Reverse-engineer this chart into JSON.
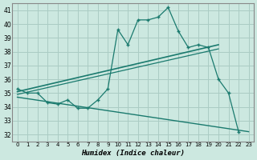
{
  "x": [
    0,
    1,
    2,
    3,
    4,
    5,
    6,
    7,
    8,
    9,
    10,
    11,
    12,
    13,
    14,
    15,
    16,
    17,
    18,
    19,
    20,
    21,
    22,
    23
  ],
  "humidex": [
    35.3,
    35.0,
    35.0,
    34.3,
    34.2,
    34.5,
    33.9,
    33.9,
    34.5,
    35.3,
    39.6,
    38.5,
    40.3,
    40.3,
    40.5,
    41.2,
    39.5,
    38.3,
    38.5,
    38.3,
    36.0,
    35.0,
    32.2,
    null
  ],
  "line_upper": {
    "x0": 0,
    "x1": 20,
    "y0": 35.1,
    "y1": 38.5
  },
  "line_middle": {
    "x0": 0,
    "x1": 20,
    "y0": 34.9,
    "y1": 38.2
  },
  "line_lower": {
    "x0": 0,
    "x1": 23,
    "y0": 34.7,
    "y1": 32.2
  },
  "bg_color": "#cce8e0",
  "grid_color": "#aaccC4",
  "line_color": "#1a7a6e",
  "ylabel_ticks": [
    32,
    33,
    34,
    35,
    36,
    37,
    38,
    39,
    40,
    41
  ],
  "xlabel": "Humidex (Indice chaleur)",
  "xlim": [
    -0.5,
    23.5
  ],
  "ylim": [
    31.5,
    41.5
  ]
}
